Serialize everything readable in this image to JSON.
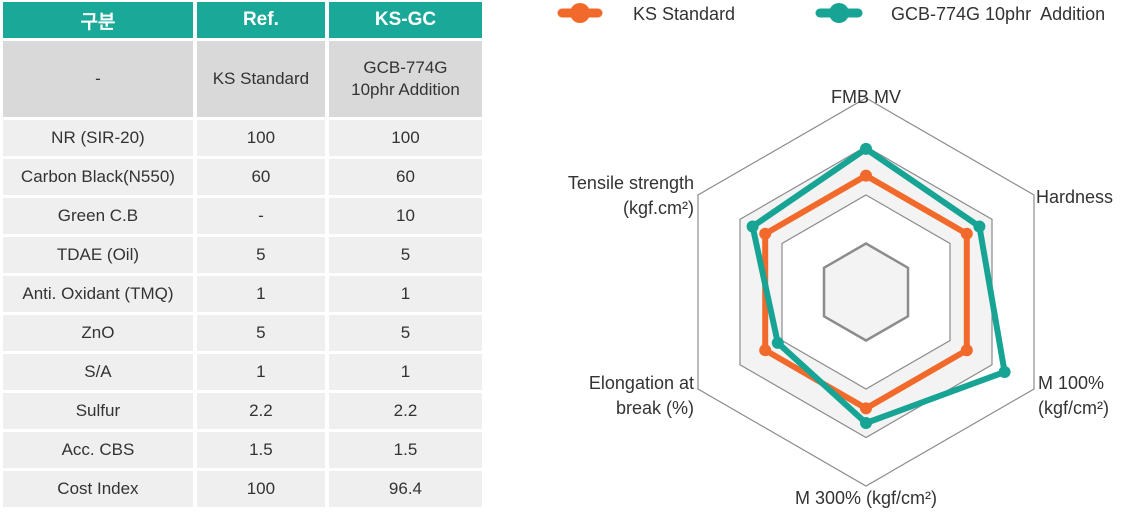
{
  "table": {
    "headers": [
      "구분",
      "Ref.",
      "KS-GC"
    ],
    "subheader": [
      "-",
      "KS Standard",
      "GCB-774G\n10phr  Addition"
    ],
    "rows": [
      [
        "NR (SIR-20)",
        "100",
        "100"
      ],
      [
        "Carbon Black(N550)",
        "60",
        "60"
      ],
      [
        "Green C.B",
        "-",
        "10"
      ],
      [
        "TDAE (Oil)",
        "5",
        "5"
      ],
      [
        "Anti. Oxidant (TMQ)",
        "1",
        "1"
      ],
      [
        "ZnO",
        "5",
        "5"
      ],
      [
        "S/A",
        "1",
        "1"
      ],
      [
        "Sulfur",
        "2.2",
        "2.2"
      ],
      [
        "Acc. CBS",
        "1.5",
        "1.5"
      ],
      [
        "Cost Index",
        "100",
        "96.4"
      ]
    ]
  },
  "chart_data": {
    "type": "radar",
    "axes": [
      {
        "label": "FMB MV"
      },
      {
        "label": "Hardness"
      },
      {
        "label": "M 100%\n(kgf/cm²)"
      },
      {
        "label": "M 300% (kgf/cm²)"
      },
      {
        "label": "Elongation at\nbreak (%)"
      },
      {
        "label": "Tensile strength\n(kgf.cm²)"
      }
    ],
    "rings": 4,
    "max": 4,
    "series": [
      {
        "name": "KS Standard",
        "color": "#f26a2b",
        "values": [
          2.4,
          2.4,
          2.4,
          2.4,
          2.4,
          2.4
        ]
      },
      {
        "name": "GCB-774G 10phr  Addition",
        "color": "#17a495",
        "values": [
          2.95,
          2.7,
          3.3,
          2.7,
          2.1,
          2.7
        ]
      }
    ],
    "ring_colors": [
      "#8c8c8c",
      "#8c8c8c",
      "#8c8c8c",
      "#8c8c8c"
    ]
  }
}
